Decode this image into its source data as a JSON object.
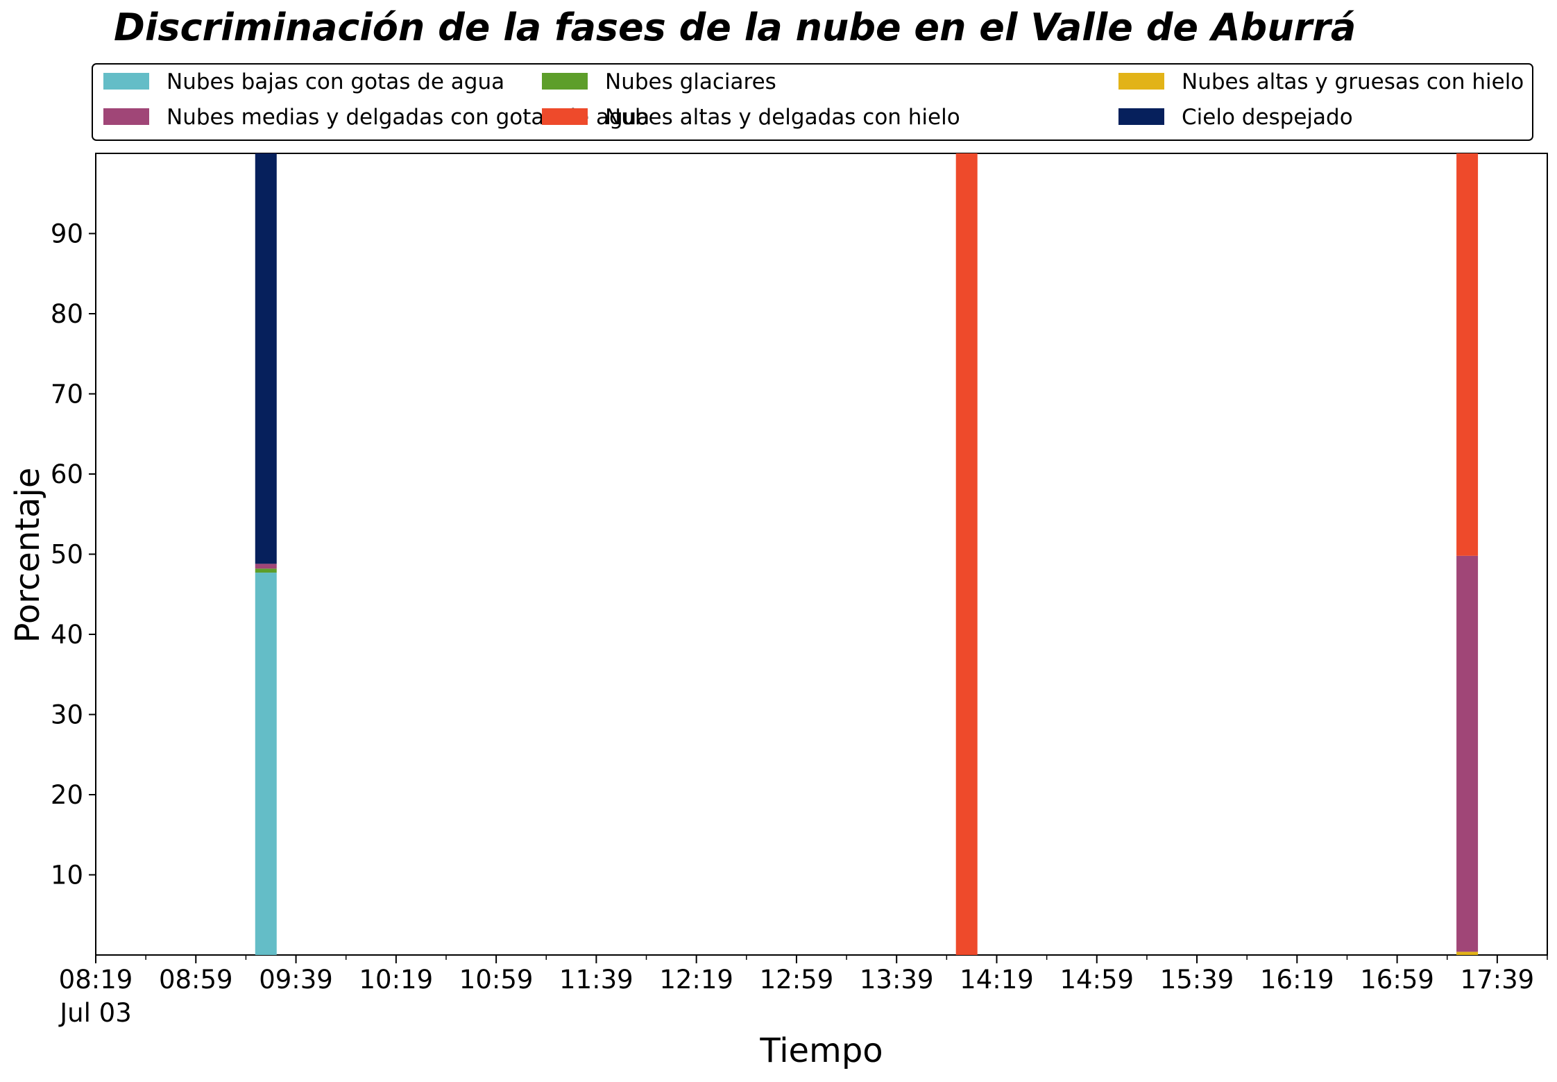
{
  "chart_data": {
    "type": "bar",
    "stacked": true,
    "title": "Discriminación de la fases de la nube en el Valle de Aburrá",
    "xlabel": "Tiempo",
    "ylabel": "Porcentaje",
    "ylim": [
      0,
      100
    ],
    "yticks": [
      10,
      20,
      30,
      40,
      50,
      60,
      70,
      80,
      90
    ],
    "x_tick_labels": [
      "08:19",
      "08:59",
      "09:39",
      "10:19",
      "10:59",
      "11:39",
      "12:19",
      "12:59",
      "13:39",
      "14:19",
      "14:59",
      "15:39",
      "16:19",
      "16:59",
      "17:39"
    ],
    "x_date_label": "Jul 03",
    "x_range": [
      "08:19",
      "17:59"
    ],
    "grid": false,
    "legend_placement": "top",
    "categories": [
      "09:27",
      "14:07",
      "17:27"
    ],
    "series": [
      {
        "name": "Nubes bajas con gotas de agua",
        "color": "#64BDC7",
        "values": [
          47.7,
          0,
          0
        ]
      },
      {
        "name": "Nubes glaciares",
        "color": "#5D9E2A",
        "values": [
          0.5,
          0,
          0
        ]
      },
      {
        "name": "Nubes altas y gruesas con hielo",
        "color": "#E2B318",
        "values": [
          0,
          0,
          0.4
        ]
      },
      {
        "name": "Nubes medias y delgadas con gotas de agua",
        "color": "#A04677",
        "values": [
          0.6,
          0,
          49.4
        ]
      },
      {
        "name": "Nubes altas y delgadas con hielo",
        "color": "#EE4A2B",
        "values": [
          0,
          100,
          50.2
        ]
      },
      {
        "name": "Cielo despejado",
        "color": "#06205C",
        "values": [
          51.2,
          0,
          0
        ]
      }
    ]
  }
}
